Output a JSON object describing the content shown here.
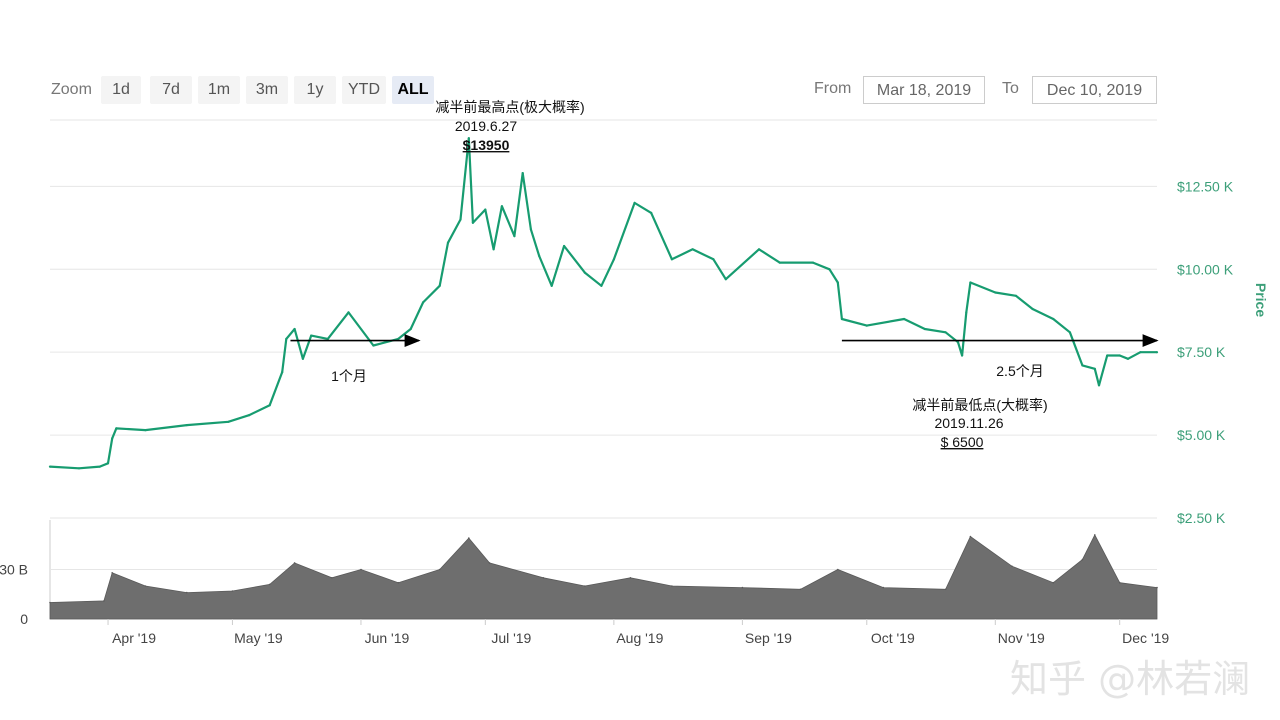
{
  "toolbar": {
    "zoom_label": "Zoom",
    "buttons": [
      "1d",
      "7d",
      "1m",
      "3m",
      "1y",
      "YTD",
      "ALL"
    ],
    "active_button": "ALL",
    "from_label": "From",
    "from_value": "Mar 18, 2019",
    "to_label": "To",
    "to_value": "Dec 10, 2019"
  },
  "colors": {
    "price_line": "#179c70",
    "volume_fill": "#6e6e6e",
    "axis_text": "#3c9f79"
  },
  "chart_data": {
    "type": "line",
    "ylabel": "Price",
    "ylim": [
      2500,
      14500
    ],
    "y_ticks": [
      "$2.50 K",
      "$5.00 K",
      "$7.50 K",
      "$10.00 K",
      "$12.50 K"
    ],
    "y_tick_values": [
      2500,
      5000,
      7500,
      10000,
      12500
    ],
    "x_ticks": [
      "Apr '19",
      "May '19",
      "Jun '19",
      "Jul '19",
      "Aug '19",
      "Sep '19",
      "Oct '19",
      "Nov '19",
      "Dec '19"
    ],
    "x_tick_dates": [
      "2019-04-01",
      "2019-05-01",
      "2019-06-01",
      "2019-07-01",
      "2019-08-01",
      "2019-09-01",
      "2019-10-01",
      "2019-11-01",
      "2019-12-01"
    ],
    "x_range": [
      "2019-03-18",
      "2019-12-10"
    ],
    "series": [
      {
        "values": [
          [
            "2019-03-18",
            4050
          ],
          [
            "2019-03-25",
            4000
          ],
          [
            "2019-03-30",
            4050
          ],
          [
            "2019-04-01",
            4150
          ],
          [
            "2019-04-02",
            4900
          ],
          [
            "2019-04-03",
            5200
          ],
          [
            "2019-04-10",
            5150
          ],
          [
            "2019-04-20",
            5300
          ],
          [
            "2019-04-30",
            5400
          ],
          [
            "2019-05-05",
            5600
          ],
          [
            "2019-05-10",
            5900
          ],
          [
            "2019-05-13",
            6900
          ],
          [
            "2019-05-14",
            7900
          ],
          [
            "2019-05-16",
            8200
          ],
          [
            "2019-05-18",
            7300
          ],
          [
            "2019-05-20",
            8000
          ],
          [
            "2019-05-24",
            7900
          ],
          [
            "2019-05-29",
            8700
          ],
          [
            "2019-06-04",
            7700
          ],
          [
            "2019-06-10",
            7900
          ],
          [
            "2019-06-13",
            8200
          ],
          [
            "2019-06-16",
            9000
          ],
          [
            "2019-06-20",
            9500
          ],
          [
            "2019-06-22",
            10800
          ],
          [
            "2019-06-25",
            11500
          ],
          [
            "2019-06-27",
            13950
          ],
          [
            "2019-06-28",
            11400
          ],
          [
            "2019-07-01",
            11800
          ],
          [
            "2019-07-03",
            10600
          ],
          [
            "2019-07-05",
            11900
          ],
          [
            "2019-07-08",
            11000
          ],
          [
            "2019-07-10",
            12900
          ],
          [
            "2019-07-12",
            11200
          ],
          [
            "2019-07-14",
            10400
          ],
          [
            "2019-07-17",
            9500
          ],
          [
            "2019-07-20",
            10700
          ],
          [
            "2019-07-25",
            9900
          ],
          [
            "2019-07-29",
            9500
          ],
          [
            "2019-08-01",
            10300
          ],
          [
            "2019-08-06",
            12000
          ],
          [
            "2019-08-10",
            11700
          ],
          [
            "2019-08-15",
            10300
          ],
          [
            "2019-08-20",
            10600
          ],
          [
            "2019-08-25",
            10300
          ],
          [
            "2019-08-28",
            9700
          ],
          [
            "2019-09-05",
            10600
          ],
          [
            "2019-09-10",
            10200
          ],
          [
            "2019-09-18",
            10200
          ],
          [
            "2019-09-22",
            10000
          ],
          [
            "2019-09-24",
            9600
          ],
          [
            "2019-09-25",
            8500
          ],
          [
            "2019-10-01",
            8300
          ],
          [
            "2019-10-10",
            8500
          ],
          [
            "2019-10-15",
            8200
          ],
          [
            "2019-10-20",
            8100
          ],
          [
            "2019-10-23",
            7800
          ],
          [
            "2019-10-24",
            7400
          ],
          [
            "2019-10-25",
            8700
          ],
          [
            "2019-10-26",
            9600
          ],
          [
            "2019-11-01",
            9300
          ],
          [
            "2019-11-06",
            9200
          ],
          [
            "2019-11-10",
            8800
          ],
          [
            "2019-11-15",
            8500
          ],
          [
            "2019-11-19",
            8100
          ],
          [
            "2019-11-22",
            7100
          ],
          [
            "2019-11-25",
            7000
          ],
          [
            "2019-11-26",
            6500
          ],
          [
            "2019-11-28",
            7400
          ],
          [
            "2019-12-01",
            7400
          ],
          [
            "2019-12-03",
            7300
          ],
          [
            "2019-12-06",
            7500
          ],
          [
            "2019-12-10",
            7500
          ]
        ]
      }
    ],
    "volume": {
      "y_ticks": [
        "30 B",
        "0"
      ],
      "y_tick_values": [
        30,
        0
      ],
      "unit": "B",
      "values": [
        [
          "2019-03-18",
          10
        ],
        [
          "2019-03-31",
          11
        ],
        [
          "2019-04-02",
          28
        ],
        [
          "2019-04-10",
          20
        ],
        [
          "2019-04-20",
          16
        ],
        [
          "2019-05-01",
          17
        ],
        [
          "2019-05-10",
          21
        ],
        [
          "2019-05-16",
          34
        ],
        [
          "2019-05-25",
          25
        ],
        [
          "2019-06-01",
          30
        ],
        [
          "2019-06-10",
          22
        ],
        [
          "2019-06-20",
          30
        ],
        [
          "2019-06-27",
          49
        ],
        [
          "2019-07-02",
          34
        ],
        [
          "2019-07-15",
          25
        ],
        [
          "2019-07-25",
          20
        ],
        [
          "2019-08-05",
          25
        ],
        [
          "2019-08-15",
          20
        ],
        [
          "2019-09-01",
          19
        ],
        [
          "2019-09-15",
          18
        ],
        [
          "2019-09-24",
          30
        ],
        [
          "2019-10-05",
          19
        ],
        [
          "2019-10-20",
          18
        ],
        [
          "2019-10-26",
          50
        ],
        [
          "2019-11-05",
          32
        ],
        [
          "2019-11-15",
          22
        ],
        [
          "2019-11-22",
          36
        ],
        [
          "2019-11-25",
          51
        ],
        [
          "2019-12-01",
          22
        ],
        [
          "2019-12-10",
          19
        ]
      ]
    },
    "annotations": {
      "high": {
        "title": "减半前最高点(极大概率)",
        "date": "2019.6.27",
        "price": "$13950"
      },
      "low": {
        "title": "减半前最低点(大概率)",
        "date": "2019.11.26",
        "price": "$ 6500"
      },
      "arrow1_label": "1个月",
      "arrow2_label": "2.5个月",
      "arrow1": {
        "from": "2019-05-15",
        "to": "2019-06-15",
        "price": 7850
      },
      "arrow2": {
        "from": "2019-09-25",
        "to": "2019-12-10",
        "price": 7850
      }
    }
  },
  "watermark": "知乎 @林若澜"
}
